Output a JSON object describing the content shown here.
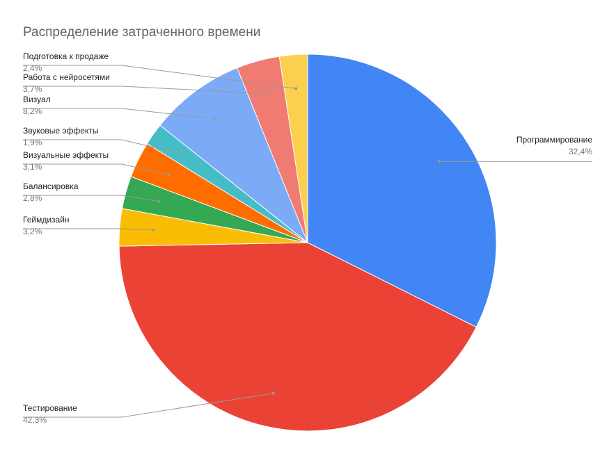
{
  "chart_data": {
    "type": "pie",
    "title": "Распределение затраченного времени",
    "categories": [
      "Программирование",
      "Тестирование",
      "Геймдизайн",
      "Балансировка",
      "Визуальные эффекты",
      "Звуковые эффекты",
      "Визуал",
      "Работа с нейросетями",
      "Подготовка к продаже"
    ],
    "values": [
      32.4,
      42.3,
      3.2,
      2.8,
      3.1,
      1.9,
      8.2,
      3.7,
      2.4
    ],
    "value_labels": [
      "32,4%",
      "42,3%",
      "3,2%",
      "2,8%",
      "3,1%",
      "1,9%",
      "8,2%",
      "3,7%",
      "2,4%"
    ],
    "colors": [
      "#4285f4",
      "#ea4335",
      "#fbbc04",
      "#34a853",
      "#ff6d01",
      "#46bdc6",
      "#7baaf7",
      "#f07b72",
      "#fcd04f"
    ]
  }
}
